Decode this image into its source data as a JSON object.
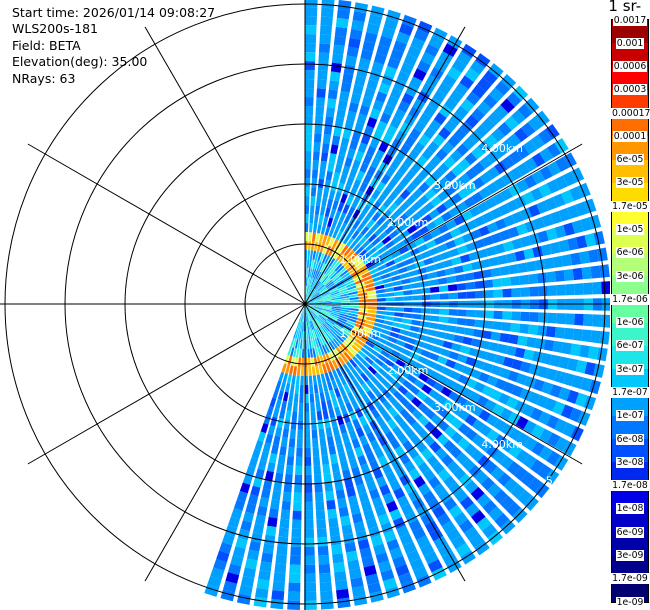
{
  "header": {
    "start_time": "Start time: 2026/01/14 09:08:27",
    "instrument": "WLS200s-181",
    "field": "Field: BETA",
    "elevation": "Elevation(deg): 35.00",
    "nrays": "NRays: 63"
  },
  "plot": {
    "type": "ppi-scan",
    "range_rings_km": [
      1,
      2,
      3,
      4,
      5
    ],
    "range_labels": [
      "1.00km",
      "2.00km",
      "3.00km",
      "4.00km",
      "5"
    ],
    "ray_count": 63,
    "azimuth_sector_deg": [
      0,
      200
    ],
    "spoke_angles_deg": [
      0,
      30,
      60,
      90,
      120,
      150,
      180,
      210,
      240,
      270,
      300,
      330
    ]
  },
  "colorbar": {
    "unit_label": "-1 sr-",
    "levels": [
      "0.0017",
      "0.001",
      "0.0006",
      "0.0003",
      "0.00017",
      "0.0001",
      "6e-05",
      "3e-05",
      "1.7e-05",
      "1e-05",
      "6e-06",
      "3e-06",
      "1.7e-06",
      "1e-06",
      "6e-07",
      "3e-07",
      "1.7e-07",
      "1e-07",
      "6e-08",
      "3e-08",
      "1.7e-08",
      "1e-08",
      "6e-09",
      "3e-09",
      "1.7e-09",
      "1e-09"
    ],
    "colors": [
      "#9c0000",
      "#c80000",
      "#ff0000",
      "#ff3c00",
      "#ff6e00",
      "#ff9600",
      "#ffbe00",
      "#ffdc00",
      "#ffff30",
      "#dcff50",
      "#b4ff78",
      "#8cff8c",
      "#64ffa0",
      "#3cf5c8",
      "#1ee6e6",
      "#00c8ff",
      "#00a0ff",
      "#0078ff",
      "#0050ff",
      "#0028f0",
      "#0000e6",
      "#0000c8",
      "#0000aa",
      "#00008c",
      "#000070"
    ]
  }
}
